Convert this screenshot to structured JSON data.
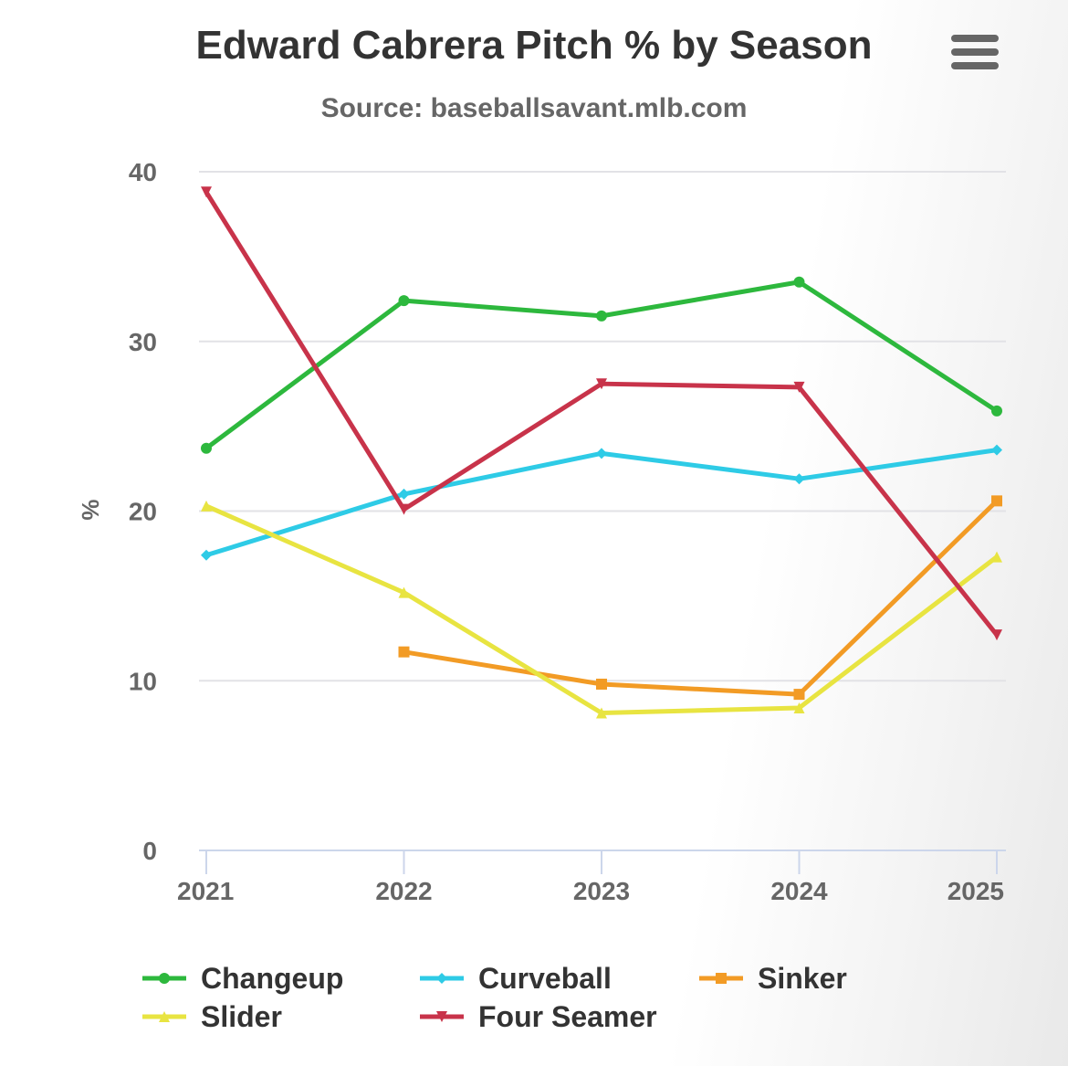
{
  "chart_data": {
    "type": "line",
    "title": "Edward Cabrera Pitch % by Season",
    "subtitle": "Source: baseballsavant.mlb.com",
    "xlabel": "",
    "ylabel": "%",
    "categories": [
      "2021",
      "2022",
      "2023",
      "2024",
      "2025"
    ],
    "ylim": [
      0,
      40
    ],
    "yticks": [
      "0",
      "10",
      "20",
      "30",
      "40"
    ],
    "grid": true,
    "legend_position": "bottom",
    "series": [
      {
        "name": "Changeup",
        "color": "#2db83d",
        "marker": "circle",
        "values": [
          23.7,
          32.4,
          31.5,
          33.5,
          25.9
        ]
      },
      {
        "name": "Curveball",
        "color": "#2ecbe6",
        "marker": "diamond",
        "values": [
          17.4,
          21.0,
          23.4,
          21.9,
          23.6
        ]
      },
      {
        "name": "Sinker",
        "color": "#f29b25",
        "marker": "square",
        "values": [
          null,
          11.7,
          9.8,
          9.2,
          20.6
        ]
      },
      {
        "name": "Slider",
        "color": "#e8e441",
        "marker": "triangle",
        "values": [
          20.3,
          15.2,
          8.1,
          8.4,
          17.3
        ]
      },
      {
        "name": "Four Seamer",
        "color": "#c8334a",
        "marker": "triangle-down",
        "values": [
          38.8,
          20.1,
          27.5,
          27.3,
          12.7
        ]
      }
    ]
  },
  "menu": {
    "icon": "hamburger-menu-icon"
  }
}
